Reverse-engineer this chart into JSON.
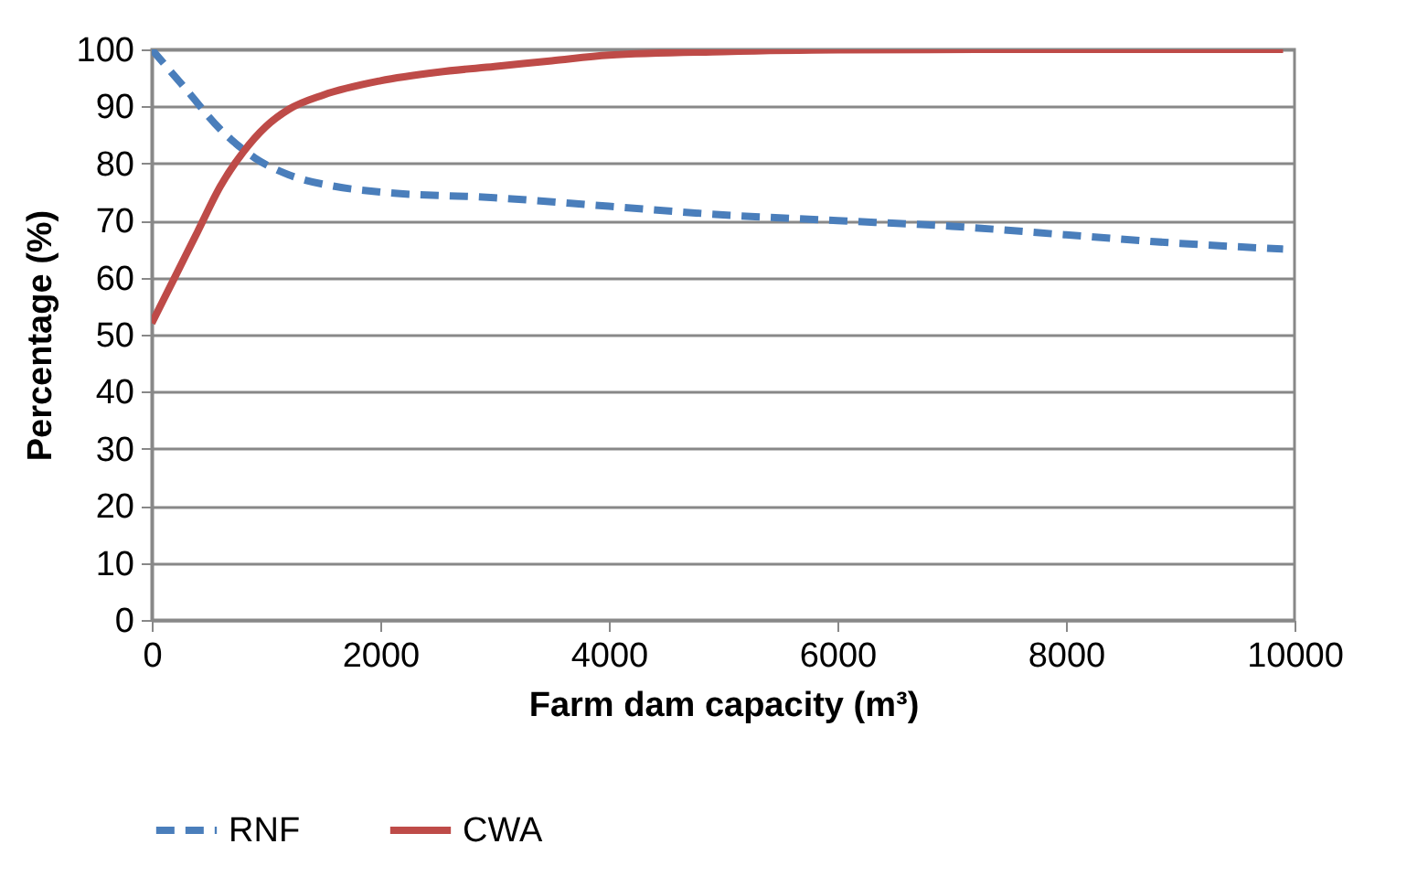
{
  "chart_data": {
    "type": "line",
    "xlabel": "Farm dam capacity (m³)",
    "ylabel": "Percentage (%)",
    "xlim": [
      0,
      10000
    ],
    "xticks": [
      0,
      2000,
      4000,
      6000,
      8000,
      10000
    ],
    "ylim": [
      0,
      100
    ],
    "yticks": [
      0,
      10,
      20,
      30,
      40,
      50,
      60,
      70,
      80,
      90,
      100
    ],
    "grid": "y",
    "legend": "bottom",
    "marker": "none",
    "series": [
      {
        "name": "RNF",
        "color": "#4a7ebb",
        "line_style": "dashed",
        "x": [
          0,
          300,
          600,
          900,
          1200,
          1600,
          2000,
          3000,
          4000,
          5000,
          6000,
          7000,
          8000,
          9000,
          9900
        ],
        "values": [
          100,
          93,
          86,
          81,
          78,
          76,
          75,
          74,
          72.5,
          71,
          70,
          69,
          67.5,
          66,
          65
        ]
      },
      {
        "name": "CWA",
        "color": "#be4b48",
        "line_style": "solid",
        "x": [
          0,
          200,
          400,
          600,
          800,
          1000,
          1200,
          1500,
          2000,
          2500,
          3000,
          3500,
          4000,
          5000,
          6000,
          8000,
          9900
        ],
        "values": [
          52,
          60,
          68,
          76,
          82,
          86.5,
          89.5,
          92,
          94.5,
          96,
          97,
          98,
          99,
          99.6,
          99.9,
          100,
          100
        ]
      }
    ]
  }
}
